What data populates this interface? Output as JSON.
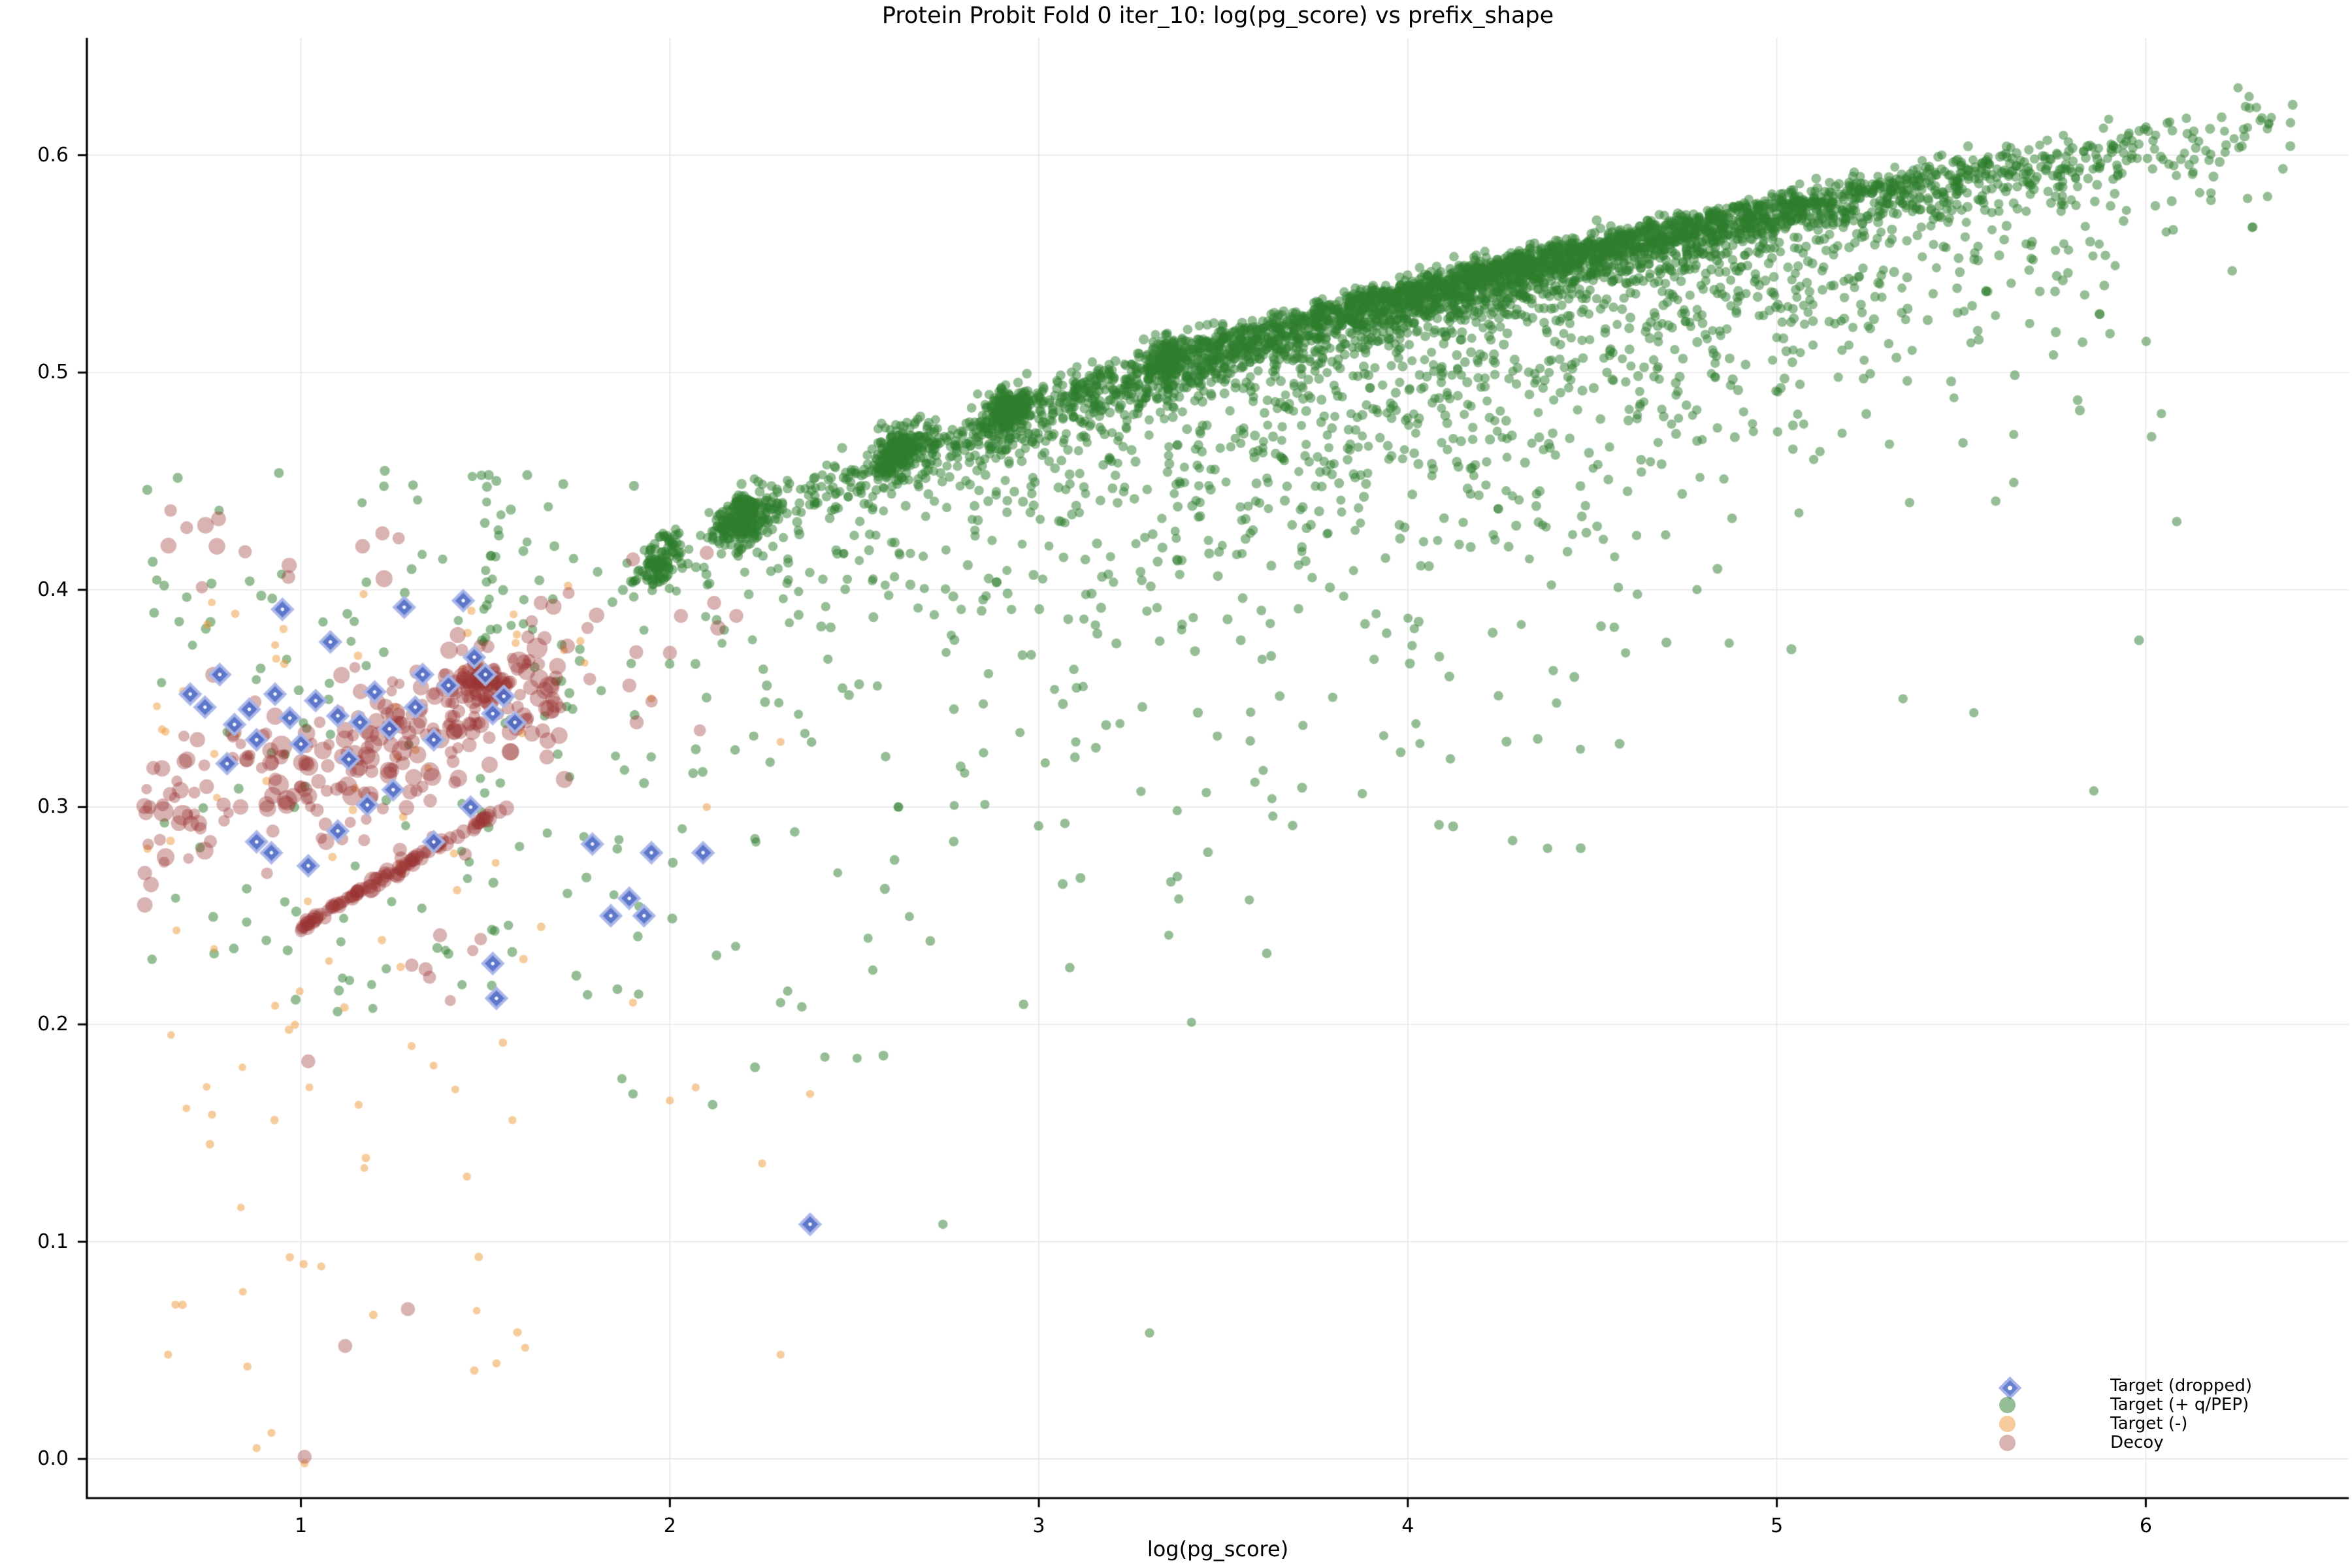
{
  "chart_data": {
    "type": "scatter",
    "title": "Protein Probit Fold 0 iter_10: log(pg_score) vs prefix_shape",
    "xlabel": "log(pg_score)",
    "ylabel": "",
    "xlim": [
      0.42,
      6.55
    ],
    "ylim": [
      -0.018,
      0.654
    ],
    "xticks": [
      1,
      2,
      3,
      4,
      5,
      6
    ],
    "yticks": [
      0.0,
      0.1,
      0.2,
      0.3,
      0.4,
      0.5,
      0.6
    ],
    "xtick_labels": [
      "1",
      "2",
      "3",
      "4",
      "5",
      "6"
    ],
    "ytick_labels": [
      "0.0",
      "0.1",
      "0.2",
      "0.3",
      "0.4",
      "0.5",
      "0.6"
    ],
    "grid": true,
    "grid_color": "#e7e7e7",
    "spine_color": "#000000",
    "legend_position": "lower right",
    "seed": 20240,
    "series": [
      {
        "name": "Target (+ q/PEP)",
        "marker": "circle",
        "color": "#2e7d2e",
        "alpha": 0.5,
        "r": [
          7.5,
          9.0
        ],
        "band": {
          "a": 0.3,
          "b": 0.1735
        },
        "components": [
          {
            "type": "band",
            "count": 3800,
            "x": [
              1.75,
              6.45
            ]
          },
          {
            "type": "ridge",
            "count": 1050,
            "x": [
              3.0,
              5.65
            ]
          },
          {
            "type": "edge_cluster",
            "cx": 1.97,
            "sx": 0.03,
            "count": 110
          },
          {
            "type": "edge_cluster",
            "cx": 2.2,
            "sx": 0.038,
            "count": 250
          },
          {
            "type": "edge_cluster",
            "cx": 2.62,
            "sx": 0.034,
            "count": 190
          },
          {
            "type": "edge_cluster",
            "cx": 2.92,
            "sx": 0.03,
            "count": 190
          },
          {
            "type": "edge_cluster",
            "cx": 3.35,
            "sx": 0.03,
            "count": 130
          },
          {
            "type": "box",
            "count": 135,
            "x": [
              0.58,
              1.93
            ],
            "y": [
              0.205,
              0.458
            ]
          },
          {
            "type": "vstreak",
            "count": 22,
            "cx": 1.52,
            "sx": 0.016,
            "y": [
              0.375,
              0.456
            ]
          },
          {
            "type": "box",
            "count": 18,
            "x": [
              1.55,
              1.8
            ],
            "y": [
              0.33,
              0.425
            ]
          },
          {
            "type": "box",
            "count": 20,
            "x": [
              2.0,
              4.2
            ],
            "y": [
              0.18,
              0.345
            ],
            "xpow": 1.6
          },
          {
            "type": "pts",
            "r": 8,
            "pts": [
              [
                2.74,
                0.108
              ],
              [
                3.3,
                0.058
              ],
              [
                1.87,
                0.175
              ],
              [
                1.9,
                0.168
              ],
              [
                6.28,
                0.627
              ],
              [
                6.3,
                0.622
              ],
              [
                6.31,
                0.616
              ],
              [
                6.25,
                0.631
              ],
              [
                6.11,
                0.617
              ],
              [
                6.33,
                0.581
              ],
              [
                6.29,
                0.567
              ],
              [
                5.94,
                0.601
              ],
              [
                3.55,
                0.432
              ],
              [
                3.8,
                0.458
              ],
              [
                4.4,
                0.462
              ],
              [
                4.15,
                0.431
              ],
              [
                2.3,
                0.21
              ],
              [
                2.55,
                0.225
              ],
              [
                4.62,
                0.425
              ],
              [
                5.1,
                0.46
              ],
              [
                2.42,
                0.185
              ],
              [
                2.62,
                0.3
              ],
              [
                2.85,
                0.325
              ],
              [
                3.1,
                0.33
              ]
            ]
          }
        ]
      },
      {
        "name": "Target (-)",
        "marker": "circle",
        "color": "#ef9a3c",
        "alpha": 0.5,
        "r": [
          5.2,
          6.8
        ],
        "components": [
          {
            "type": "box",
            "count": 55,
            "x": [
              0.58,
              1.78
            ],
            "y": [
              0.205,
              0.402
            ]
          },
          {
            "type": "box",
            "count": 30,
            "x": [
              0.6,
              1.62
            ],
            "y": [
              0.04,
              0.2
            ]
          },
          {
            "type": "pts",
            "r": 6,
            "pts": [
              [
                2.0,
                0.165
              ],
              [
                2.07,
                0.171
              ],
              [
                2.38,
                0.168
              ],
              [
                2.3,
                0.048
              ],
              [
                1.53,
                0.044
              ],
              [
                0.64,
                0.048
              ],
              [
                1.01,
                -0.002
              ],
              [
                0.88,
                0.005
              ],
              [
                0.92,
                0.012
              ],
              [
                2.25,
                0.136
              ],
              [
                1.9,
                0.21
              ],
              [
                2.1,
                0.3
              ],
              [
                2.3,
                0.33
              ],
              [
                1.95,
                0.35
              ],
              [
                1.17,
                0.398
              ],
              [
                0.66,
                0.071
              ],
              [
                1.3,
                0.19
              ],
              [
                1.45,
                0.13
              ]
            ]
          }
        ]
      },
      {
        "name": "Decoy",
        "marker": "circle",
        "color": "#9c3434",
        "alpha": 0.38,
        "r": [
          10,
          16
        ],
        "components": [
          {
            "type": "diag",
            "count": 255,
            "x0": 0.57,
            "span": 1.16,
            "xpow": 0.95,
            "base": 0.287,
            "slope": 0.062,
            "noise": 0.0185,
            "yclamp": [
              0.255,
              0.415
            ],
            "r": [
              9,
              21
            ],
            "big_frac": 0.08,
            "big_r": [
              22,
              27
            ]
          },
          {
            "type": "box",
            "count": 14,
            "x": [
              0.6,
              1.3
            ],
            "y": [
              0.398,
              0.442
            ],
            "r": [
              12,
              20
            ]
          },
          {
            "type": "box",
            "count": 7,
            "x": [
              1.75,
              2.3
            ],
            "y": [
              0.33,
              0.42
            ],
            "r": [
              12,
              20
            ]
          },
          {
            "type": "box",
            "count": 10,
            "x": [
              1.05,
              1.6
            ],
            "y": [
              0.21,
              0.29
            ],
            "r": [
              10,
              16
            ]
          },
          {
            "type": "gauss",
            "count": 95,
            "cx": 1.49,
            "sx": 0.045,
            "cy": 0.354,
            "sy": 0.0085,
            "r": [
              11,
              14
            ]
          },
          {
            "type": "line",
            "count": 95,
            "x0": 1.0,
            "x1": 1.56,
            "y0": 0.245,
            "slope": 0.1,
            "tpow": 1.25,
            "noise": 0.0012,
            "r": [
              12,
              17
            ]
          },
          {
            "type": "line",
            "count": 8,
            "x0": 1.0,
            "x1": 1.56,
            "y0": 0.245,
            "slope": 0.1,
            "tpow": 1.0,
            "noise": 0.002,
            "r": [
              17,
              22
            ]
          },
          {
            "type": "pts",
            "r": 15,
            "pts": [
              [
                1.9,
                0.414
              ],
              [
                2.1,
                0.417
              ],
              [
                2.12,
                0.394
              ],
              [
                2.03,
                0.388
              ],
              [
                2.18,
                0.388
              ],
              [
                1.89,
                0.356
              ],
              [
                1.91,
                0.339
              ],
              [
                2.0,
                0.371
              ],
              [
                1.01,
                0.001
              ],
              [
                1.29,
                0.069
              ],
              [
                1.12,
                0.052
              ],
              [
                1.02,
                0.183
              ],
              [
                0.59,
                0.3
              ],
              [
                0.6,
                0.318
              ]
            ]
          }
        ]
      },
      {
        "name": "Target (dropped)",
        "marker": "diamond",
        "color": "#4f6bc7",
        "edge_color": "#aab6e8",
        "alpha": 0.92,
        "size": 15,
        "components": [
          {
            "type": "pts",
            "r": 15,
            "pts": [
              [
                0.7,
                0.352
              ],
              [
                0.74,
                0.346
              ],
              [
                0.78,
                0.361
              ],
              [
                0.82,
                0.338
              ],
              [
                0.86,
                0.345
              ],
              [
                0.88,
                0.331
              ],
              [
                0.93,
                0.352
              ],
              [
                0.97,
                0.341
              ],
              [
                1.0,
                0.329
              ],
              [
                1.04,
                0.349
              ],
              [
                1.08,
                0.376
              ],
              [
                1.1,
                0.342
              ],
              [
                1.13,
                0.322
              ],
              [
                1.16,
                0.339
              ],
              [
                1.2,
                0.353
              ],
              [
                1.24,
                0.336
              ],
              [
                1.28,
                0.392
              ],
              [
                1.31,
                0.346
              ],
              [
                1.33,
                0.361
              ],
              [
                1.36,
                0.331
              ],
              [
                1.4,
                0.356
              ],
              [
                1.44,
                0.395
              ],
              [
                1.47,
                0.369
              ],
              [
                1.5,
                0.361
              ],
              [
                1.52,
                0.343
              ],
              [
                1.55,
                0.351
              ],
              [
                1.58,
                0.339
              ],
              [
                0.95,
                0.391
              ],
              [
                0.88,
                0.284
              ],
              [
                0.92,
                0.279
              ],
              [
                1.02,
                0.273
              ],
              [
                1.1,
                0.289
              ],
              [
                1.18,
                0.301
              ],
              [
                1.36,
                0.284
              ],
              [
                1.52,
                0.228
              ],
              [
                1.53,
                0.212
              ],
              [
                1.79,
                0.283
              ],
              [
                1.95,
                0.279
              ],
              [
                2.09,
                0.279
              ],
              [
                1.89,
                0.258
              ],
              [
                1.84,
                0.25
              ],
              [
                1.93,
                0.25
              ],
              [
                2.38,
                0.108
              ],
              [
                1.46,
                0.3
              ],
              [
                1.25,
                0.308
              ],
              [
                0.8,
                0.32
              ]
            ]
          }
        ]
      }
    ]
  },
  "legend": {
    "items": [
      {
        "label": "Target (dropped)",
        "marker": "diamond",
        "color": "#4f6bc7",
        "edge_color": "#aab6e8"
      },
      {
        "label": "Target (+ q/PEP)",
        "marker": "circle",
        "color": "#2e7d2e",
        "alpha": 0.5
      },
      {
        "label": "Target (-)",
        "marker": "circle",
        "color": "#ef9a3c",
        "alpha": 0.5
      },
      {
        "label": "Decoy",
        "marker": "circle",
        "color": "#9c3434",
        "alpha": 0.38
      }
    ]
  }
}
